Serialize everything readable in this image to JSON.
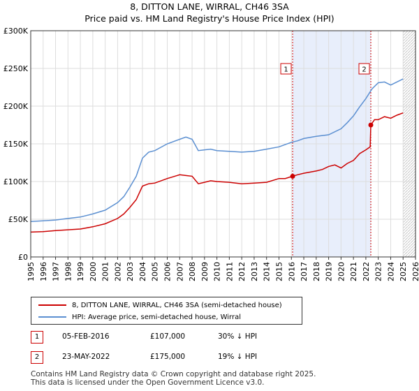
{
  "title_line1": "8, DITTON LANE, WIRRAL, CH46 3SA",
  "title_line2": "Price paid vs. HM Land Registry's House Price Index (HPI)",
  "legend": {
    "property_label": "8, DITTON LANE, WIRRAL, CH46 3SA (semi-detached house)",
    "hpi_label": "HPI: Average price, semi-detached house, Wirral"
  },
  "transactions": [
    {
      "num": "1",
      "date": "05-FEB-2016",
      "price": "£107,000",
      "hpi": "30% ↓ HPI"
    },
    {
      "num": "2",
      "date": "23-MAY-2022",
      "price": "£175,000",
      "hpi": "19% ↓ HPI"
    }
  ],
  "footer_line1": "Contains HM Land Registry data © Crown copyright and database right 2025.",
  "footer_line2": "This data is licensed under the Open Government Licence v3.0.",
  "colors": {
    "property": "#cc0000",
    "hpi": "#5b8fd1",
    "shade": "#e8eefb",
    "grid": "#dddddd"
  },
  "chart_data": {
    "type": "line",
    "title": "Price paid vs. HM Land Registry's House Price Index (HPI)",
    "xlabel": "",
    "ylabel": "",
    "xlim": [
      1995,
      2026
    ],
    "ylim": [
      0,
      300000
    ],
    "x_ticks": [
      "1995",
      "1996",
      "1997",
      "1998",
      "1999",
      "2000",
      "2001",
      "2002",
      "2003",
      "2004",
      "2005",
      "2006",
      "2007",
      "2008",
      "2009",
      "2010",
      "2011",
      "2012",
      "2013",
      "2014",
      "2015",
      "2016",
      "2017",
      "2018",
      "2019",
      "2020",
      "2021",
      "2022",
      "2023",
      "2024",
      "2025",
      "2026"
    ],
    "y_ticks": [
      {
        "value": 0,
        "label": "£0"
      },
      {
        "value": 50000,
        "label": "£50K"
      },
      {
        "value": 100000,
        "label": "£100K"
      },
      {
        "value": 150000,
        "label": "£150K"
      },
      {
        "value": 200000,
        "label": "£200K"
      },
      {
        "value": 250000,
        "label": "£250K"
      },
      {
        "value": 300000,
        "label": "£300K"
      }
    ],
    "shaded_period": [
      2016.1,
      2022.4
    ],
    "hatched_after": 2025.0,
    "markers": [
      {
        "label": "1",
        "x": 2016.1,
        "y": 107000
      },
      {
        "label": "2",
        "x": 2022.4,
        "y": 175000
      }
    ],
    "series": [
      {
        "name": "8, DITTON LANE, WIRRAL, CH46 3SA (semi-detached house)",
        "x": [
          1995,
          1996,
          1997,
          1998,
          1999,
          2000,
          2001,
          2002,
          2002.5,
          2003,
          2003.5,
          2004,
          2004.5,
          2005,
          2006,
          2007,
          2007.5,
          2008,
          2008.5,
          2009,
          2009.5,
          2010,
          2011,
          2012,
          2013,
          2014,
          2015,
          2015.5,
          2016.1,
          2016.5,
          2017,
          2018,
          2018.5,
          2019,
          2019.5,
          2020,
          2020.5,
          2021,
          2021.5,
          2022,
          2022.35,
          2022.4,
          2022.7,
          2023,
          2023.5,
          2024,
          2024.5,
          2025
        ],
        "y": [
          33000,
          33500,
          35000,
          36000,
          37000,
          40000,
          44000,
          51000,
          57000,
          66000,
          76000,
          94000,
          97000,
          98000,
          104000,
          109000,
          108000,
          107000,
          97000,
          99000,
          101000,
          100000,
          99000,
          97000,
          98000,
          99000,
          104000,
          104000,
          107000,
          109000,
          111000,
          114000,
          116000,
          120000,
          122000,
          118000,
          124000,
          128000,
          137000,
          142000,
          146000,
          175000,
          182000,
          182000,
          186000,
          184000,
          188000,
          191000
        ]
      },
      {
        "name": "HPI: Average price, semi-detached house, Wirral",
        "x": [
          1995,
          1996,
          1997,
          1998,
          1999,
          2000,
          2001,
          2002,
          2002.5,
          2003,
          2003.5,
          2004,
          2004.5,
          2005,
          2006,
          2007,
          2007.5,
          2008,
          2008.5,
          2009,
          2009.5,
          2010,
          2011,
          2012,
          2013,
          2014,
          2015,
          2016,
          2016.5,
          2017,
          2018,
          2019,
          2020,
          2020.5,
          2021,
          2021.5,
          2022,
          2022.5,
          2023,
          2023.5,
          2024,
          2024.5,
          2025
        ],
        "y": [
          47000,
          48000,
          49000,
          51000,
          53000,
          57000,
          62000,
          72000,
          80000,
          93000,
          107000,
          131000,
          139000,
          141000,
          150000,
          156000,
          159000,
          156000,
          141000,
          142000,
          143000,
          141000,
          140000,
          139000,
          140000,
          143000,
          146000,
          152000,
          154000,
          157000,
          160000,
          162000,
          170000,
          178000,
          187000,
          199000,
          210000,
          223000,
          231000,
          232000,
          228000,
          232000,
          236000
        ]
      }
    ]
  }
}
